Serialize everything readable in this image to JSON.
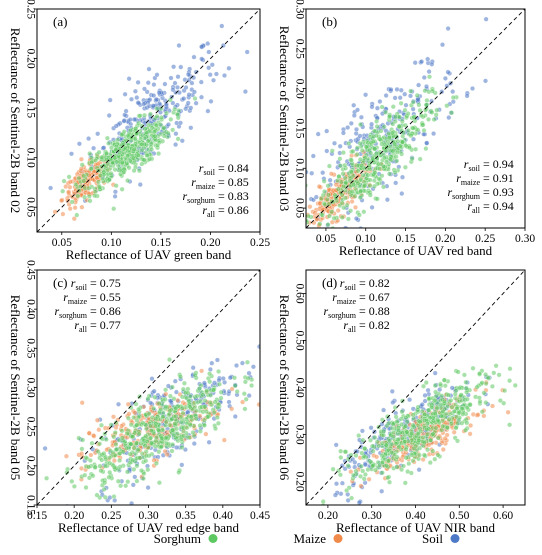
{
  "legend": [
    {
      "label": "Sorghum",
      "color": "#5ec962"
    },
    {
      "label": "Maize",
      "color": "#f08a4b"
    },
    {
      "label": "Soil",
      "color": "#4e79c7"
    }
  ],
  "series_colors": {
    "sorghum": "#5ec962",
    "maize": "#f08a4b",
    "soil": "#4e79c7"
  },
  "chart_data": [
    {
      "type": "scatter",
      "panel_label": "(a)",
      "xlabel": "Reflectance of UAV green band",
      "ylabel": "Reflectance of Sentinel-2B band 02",
      "xlim": [
        0.025,
        0.25
      ],
      "ylim": [
        0.025,
        0.25
      ],
      "xticks": [
        0.05,
        0.1,
        0.15,
        0.2,
        0.25
      ],
      "yticks": [
        0.05,
        0.1,
        0.15,
        0.2,
        0.25
      ],
      "tick_labels_x": [
        "0.05",
        "0.10",
        "0.15",
        "0.20",
        "0.25"
      ],
      "tick_labels_y": [
        "0.05",
        "0.10",
        "0.15",
        "0.20",
        "0.25"
      ],
      "reference_line": "1:1",
      "stats_position": "bottom-right",
      "stats": [
        {
          "sub": "soil",
          "value": "= 0.84"
        },
        {
          "sub": "maize",
          "value": "= 0.85"
        },
        {
          "sub": "sorghum",
          "value": "= 0.83"
        },
        {
          "sub": "all",
          "value": "= 0.86"
        }
      ],
      "series": [
        {
          "name": "Sorghum",
          "cx": 0.115,
          "cy": 0.105,
          "sx": 0.022,
          "sy": 0.016,
          "slope": 0.65,
          "n": 420
        },
        {
          "name": "Maize",
          "cx": 0.075,
          "cy": 0.075,
          "sx": 0.012,
          "sy": 0.011,
          "slope": 0.7,
          "n": 180
        },
        {
          "name": "Soil",
          "cx": 0.14,
          "cy": 0.14,
          "sx": 0.035,
          "sy": 0.03,
          "slope": 0.75,
          "n": 260
        }
      ]
    },
    {
      "type": "scatter",
      "panel_label": "(b)",
      "xlabel": "Reflectance of UAV red band",
      "ylabel": "Reflectance of Sentinel-2B band 03",
      "xlim": [
        0.025,
        0.3
      ],
      "ylim": [
        0.025,
        0.3
      ],
      "xticks": [
        0.05,
        0.1,
        0.15,
        0.2,
        0.25,
        0.3
      ],
      "yticks": [
        0.05,
        0.1,
        0.15,
        0.2,
        0.25,
        0.3
      ],
      "tick_labels_x": [
        "0.05",
        "0.10",
        "0.15",
        "0.20",
        "0.25",
        "0.30"
      ],
      "tick_labels_y": [
        "0.05",
        "0.10",
        "0.15",
        "0.20",
        "0.25",
        "0.30"
      ],
      "reference_line": "1:1",
      "stats_position": "bottom-right",
      "stats": [
        {
          "sub": "soil",
          "value": "= 0.94"
        },
        {
          "sub": "maize",
          "value": "= 0.91"
        },
        {
          "sub": "sorghum",
          "value": "= 0.93"
        },
        {
          "sub": "all",
          "value": "= 0.94"
        }
      ],
      "series": [
        {
          "name": "Sorghum",
          "cx": 0.11,
          "cy": 0.11,
          "sx": 0.035,
          "sy": 0.03,
          "slope": 0.85,
          "n": 420
        },
        {
          "name": "Maize",
          "cx": 0.065,
          "cy": 0.065,
          "sx": 0.02,
          "sy": 0.017,
          "slope": 0.8,
          "n": 200
        },
        {
          "name": "Soil",
          "cx": 0.12,
          "cy": 0.135,
          "sx": 0.05,
          "sy": 0.045,
          "slope": 0.85,
          "n": 260
        }
      ]
    },
    {
      "type": "scatter",
      "panel_label": "(c)",
      "xlabel": "Reflectance of UAV red edge band",
      "ylabel": "Reflectance of Sentinel-2B band 05",
      "xlim": [
        0.15,
        0.45
      ],
      "ylim": [
        0.15,
        0.45
      ],
      "xticks": [
        0.15,
        0.2,
        0.25,
        0.3,
        0.35,
        0.4,
        0.45
      ],
      "yticks": [
        0.15,
        0.2,
        0.25,
        0.3,
        0.35,
        0.4,
        0.45
      ],
      "tick_labels_x": [
        "0.15",
        "0.20",
        "0.25",
        "0.30",
        "0.35",
        "0.40",
        "0.45"
      ],
      "tick_labels_y": [
        "0.15",
        "0.20",
        "0.25",
        "0.30",
        "0.35",
        "0.40",
        "0.45"
      ],
      "reference_line": "1:1",
      "stats_position": "top-left",
      "stats": [
        {
          "sub": "soil",
          "value": "= 0.75"
        },
        {
          "sub": "maize",
          "value": "= 0.55"
        },
        {
          "sub": "sorghum",
          "value": "= 0.86"
        },
        {
          "sub": "all",
          "value": "= 0.77"
        }
      ],
      "series": [
        {
          "name": "Sorghum",
          "cx": 0.31,
          "cy": 0.245,
          "sx": 0.05,
          "sy": 0.03,
          "slope": 0.55,
          "n": 460
        },
        {
          "name": "Maize",
          "cx": 0.3,
          "cy": 0.245,
          "sx": 0.045,
          "sy": 0.025,
          "slope": 0.35,
          "n": 230
        },
        {
          "name": "Soil",
          "cx": 0.33,
          "cy": 0.26,
          "sx": 0.05,
          "sy": 0.035,
          "slope": 0.55,
          "n": 260
        }
      ]
    },
    {
      "type": "scatter",
      "panel_label": "(d)",
      "xlabel": "Reflectance of UAV NIR band",
      "ylabel": "Reflectance of Sentinel-2B band 06",
      "xlim": [
        0.15,
        0.65
      ],
      "ylim": [
        0.15,
        0.65
      ],
      "xticks": [
        0.2,
        0.3,
        0.4,
        0.5,
        0.6
      ],
      "yticks": [
        0.2,
        0.3,
        0.4,
        0.5,
        0.6
      ],
      "tick_labels_x": [
        "0.20",
        "0.30",
        "0.40",
        "0.50",
        "0.60"
      ],
      "tick_labels_y": [
        "0.20",
        "0.30",
        "0.40",
        "0.50",
        "0.60"
      ],
      "reference_line": "1:1",
      "stats_position": "top-left",
      "stats": [
        {
          "sub": "soil",
          "value": "= 0.82"
        },
        {
          "sub": "maize",
          "value": "= 0.67"
        },
        {
          "sub": "sorghum",
          "value": "= 0.88"
        },
        {
          "sub": "all",
          "value": "= 0.82"
        }
      ],
      "series": [
        {
          "name": "Sorghum",
          "cx": 0.41,
          "cy": 0.31,
          "sx": 0.08,
          "sy": 0.045,
          "slope": 0.55,
          "n": 460
        },
        {
          "name": "Maize",
          "cx": 0.42,
          "cy": 0.3,
          "sx": 0.06,
          "sy": 0.03,
          "slope": 0.45,
          "n": 230
        },
        {
          "name": "Soil",
          "cx": 0.38,
          "cy": 0.3,
          "sx": 0.08,
          "sy": 0.045,
          "slope": 0.6,
          "n": 240
        }
      ]
    }
  ]
}
